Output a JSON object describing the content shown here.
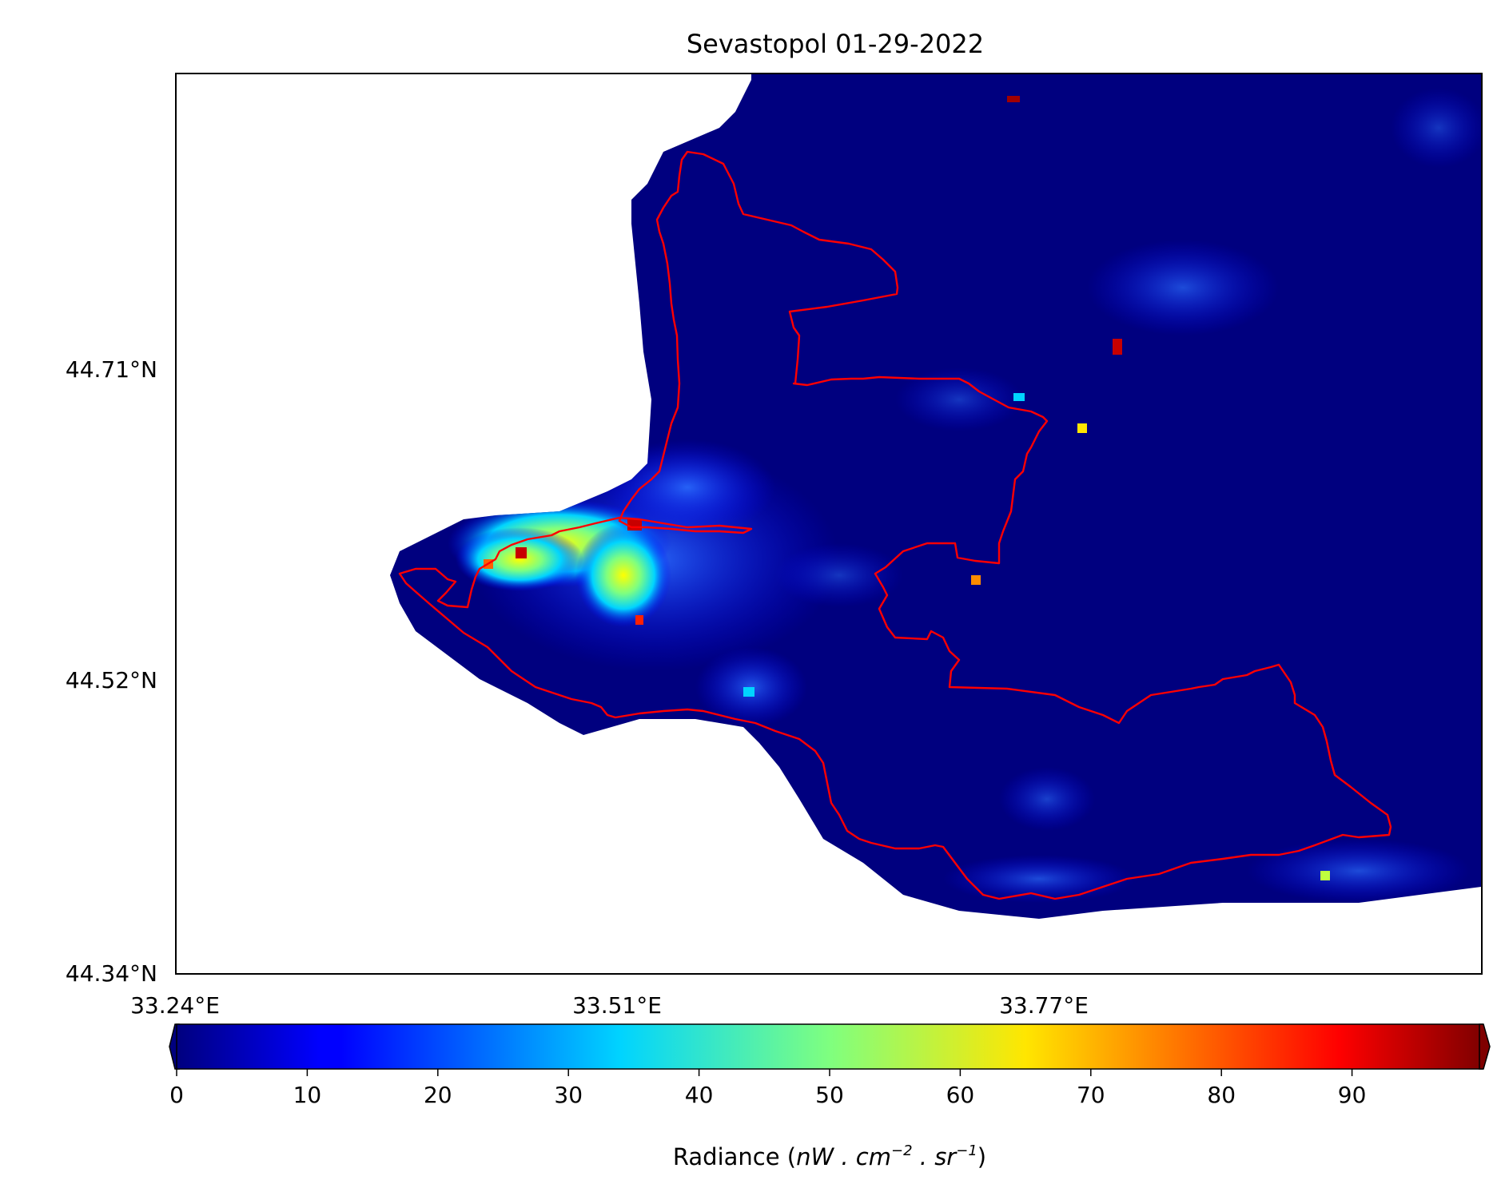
{
  "title": "Sevastopol 01-29-2022",
  "map": {
    "lat_ticks": [
      "44.71°N",
      "44.52°N",
      "44.34°N"
    ],
    "lon_ticks": [
      "33.24°E",
      "33.51°E",
      "33.77°E"
    ],
    "boundary_color": "#ff0000",
    "background_color": "#ffffff",
    "raster_base_color": "#00007f"
  },
  "colorbar": {
    "colormap": "jet",
    "range": [
      0,
      100
    ],
    "extend": "both",
    "ticks": [
      "0",
      "10",
      "20",
      "30",
      "40",
      "50",
      "60",
      "70",
      "80",
      "90"
    ],
    "label_prefix": "Radiance (",
    "label_units": "nW . cm",
    "label_exp1": "−2",
    "label_mid": " . sr",
    "label_exp2": "−1",
    "label_suffix": ")"
  }
}
